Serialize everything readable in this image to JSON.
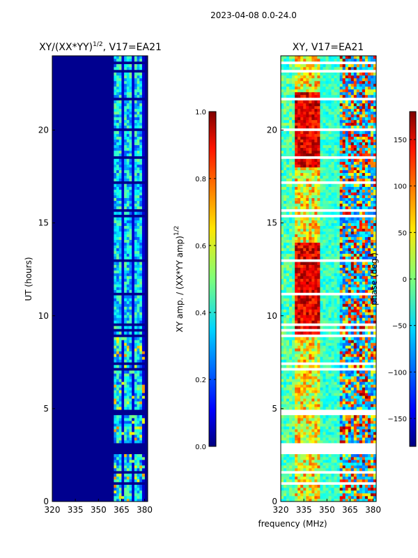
{
  "figure": {
    "suptitle": "2023-04-08 0.0-24.0",
    "xlabel_shared": "frequency (MHz)"
  },
  "chart_data": [
    {
      "type": "heatmap",
      "title": "XY/(XX*YY)",
      "title_exponent": "1/2",
      "title_suffix": ", V17=EA21",
      "xlabel": "frequency (MHz)",
      "ylabel": "UT (hours)",
      "xlim": [
        320,
        382
      ],
      "ylim": [
        0,
        24
      ],
      "xticks": [
        320,
        335,
        350,
        365,
        380
      ],
      "yticks": [
        0,
        5,
        10,
        15,
        20
      ],
      "data_band_mhz": [
        360,
        380
      ],
      "colorbar": {
        "label": "XY amp. / (XX*YY amp)",
        "label_exponent": "1/2",
        "range": [
          0.0,
          1.0
        ],
        "ticks": [
          "0.0",
          "0.2",
          "0.4",
          "0.6",
          "0.8",
          "1.0"
        ],
        "colormap": "jet"
      }
    },
    {
      "type": "heatmap",
      "title": "XY, V17=EA21",
      "xlabel": "frequency (MHz)",
      "ylabel": "",
      "xlim": [
        320,
        382
      ],
      "ylim": [
        0,
        24
      ],
      "xticks": [
        320,
        335,
        350,
        365,
        380
      ],
      "yticks": [
        0,
        5,
        10,
        15,
        20
      ],
      "colorbar": {
        "label": "phase (deg.)",
        "range": [
          -180,
          180
        ],
        "ticks": [
          "150",
          "100",
          "50",
          "0",
          "−50",
          "−100",
          "−150"
        ],
        "colormap": "jet"
      }
    }
  ]
}
